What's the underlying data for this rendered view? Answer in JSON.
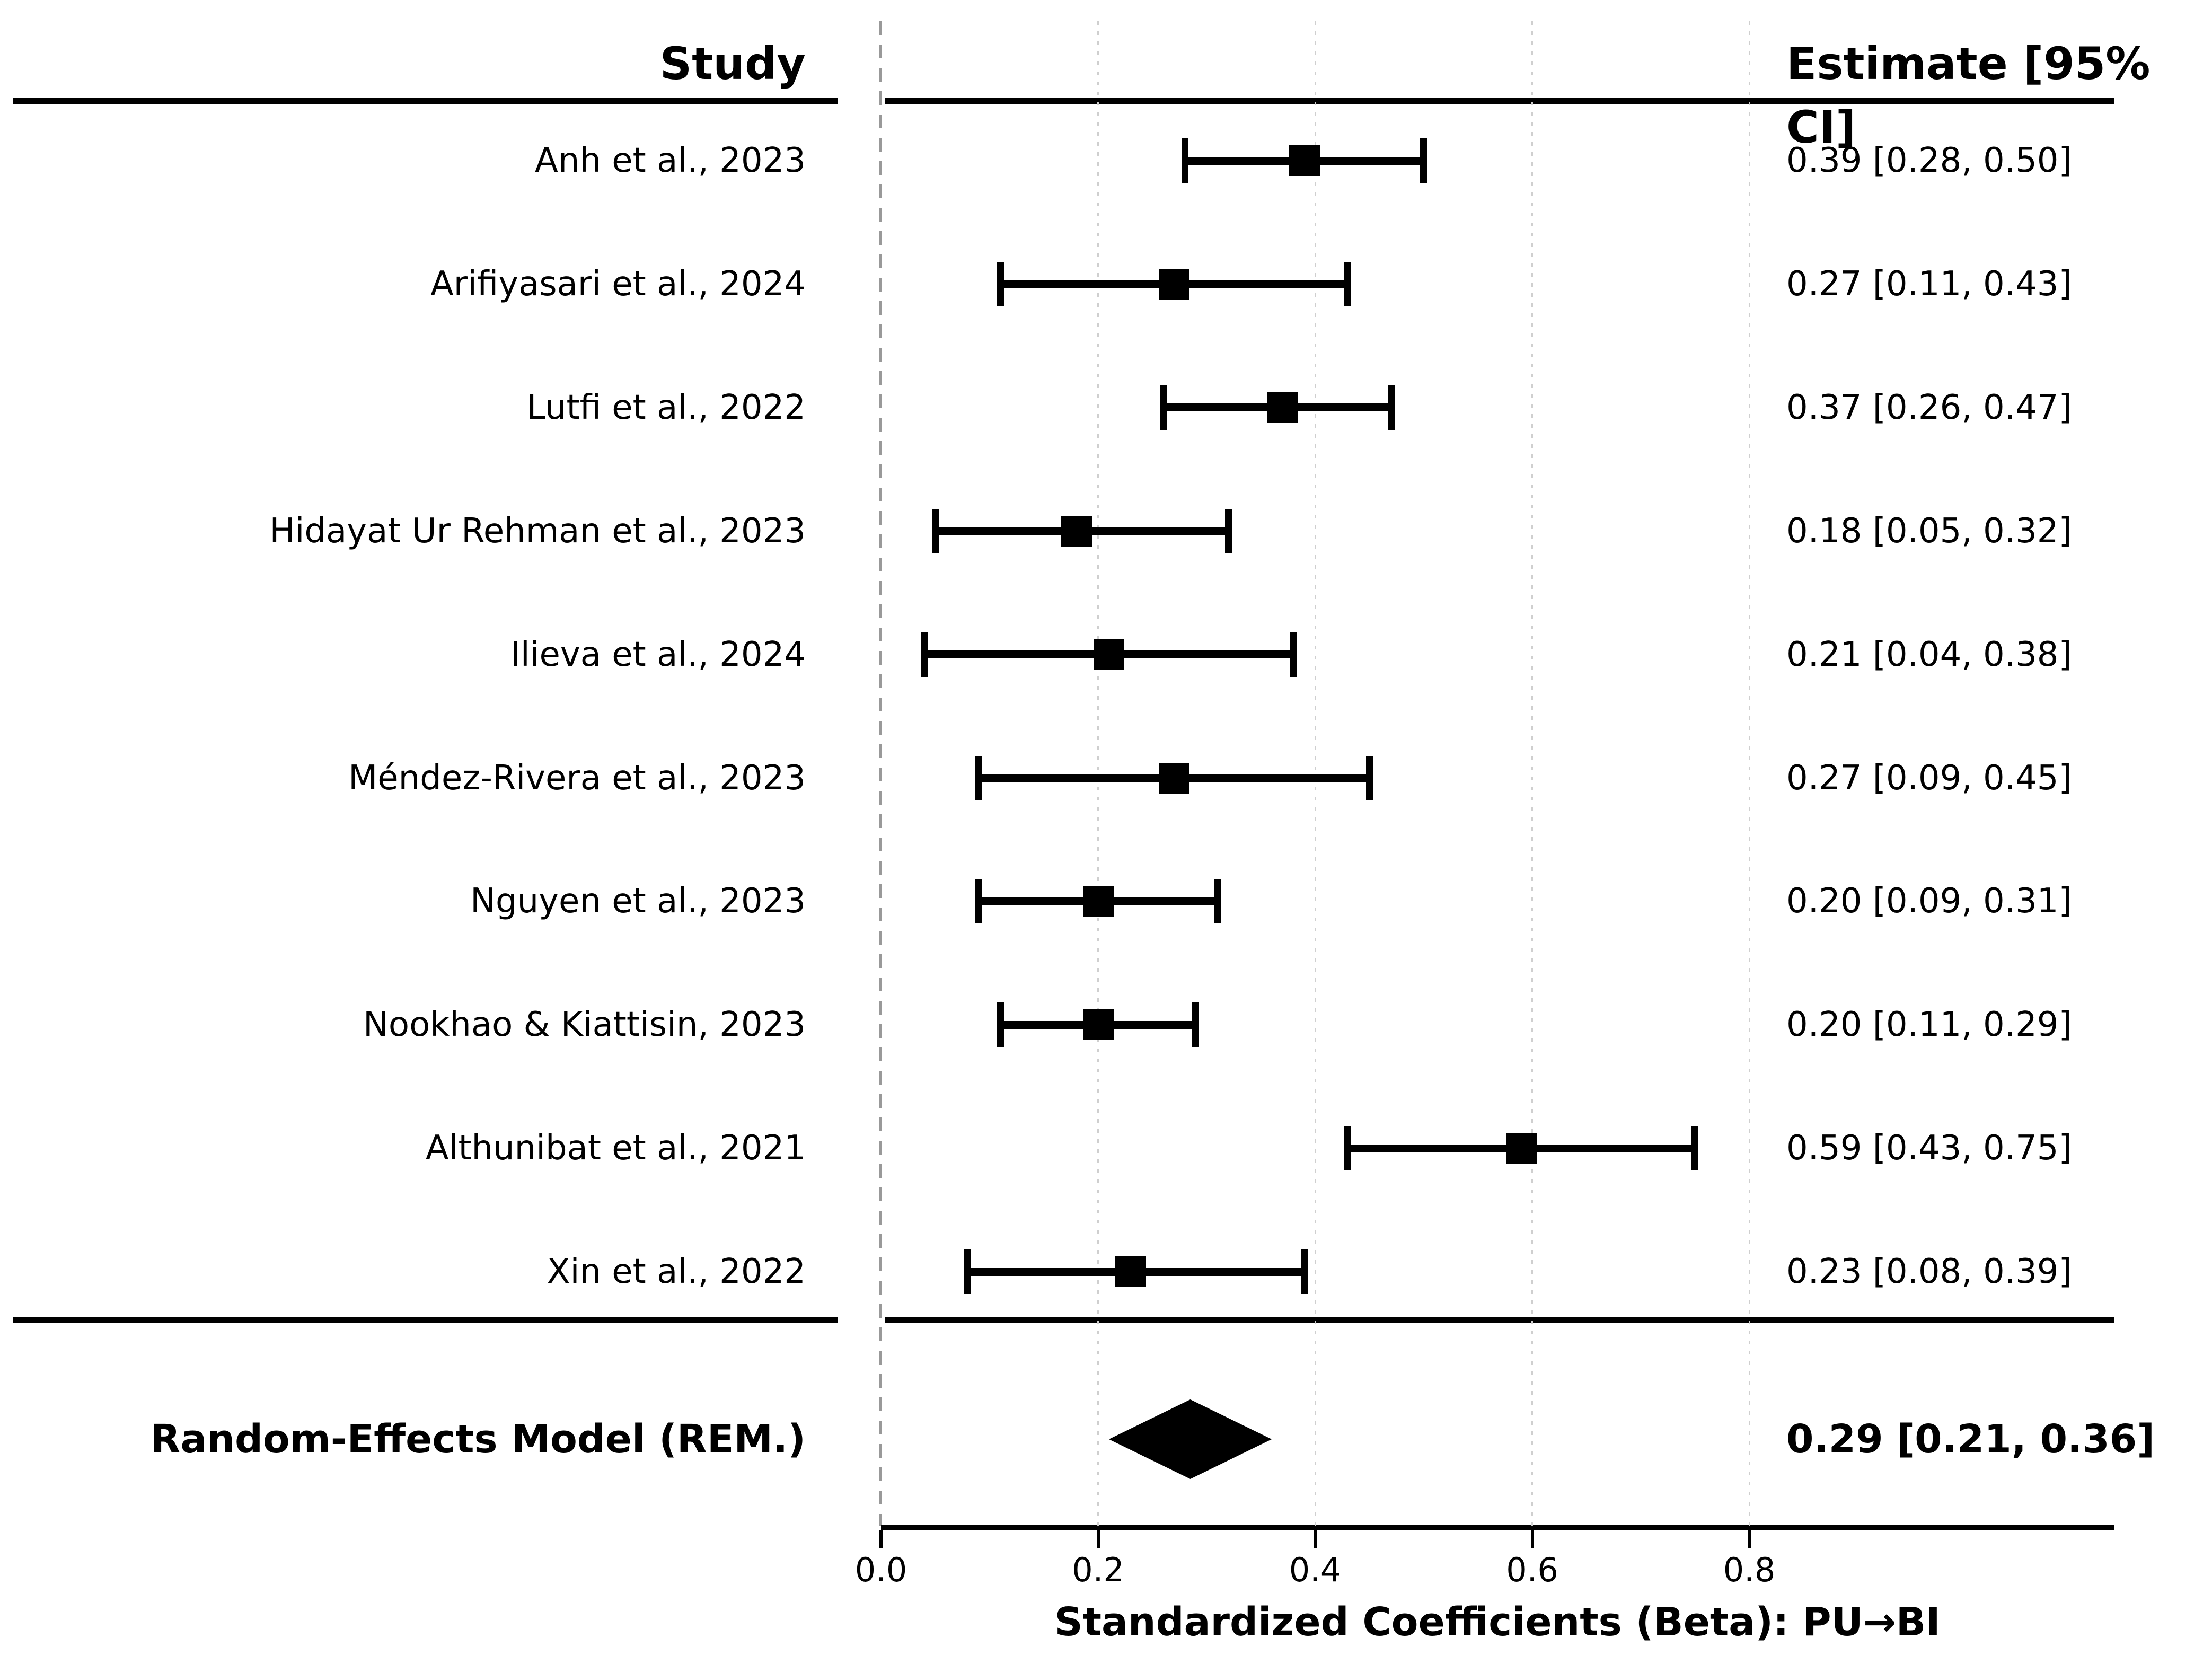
{
  "chart_data": {
    "type": "forest",
    "title": "",
    "xlabel": "Standardized Coefficients (Beta): PU→BI",
    "columns": {
      "study": "Study",
      "estimate": "Estimate [95% CI]"
    },
    "x_ticks": [
      0.0,
      0.2,
      0.4,
      0.6,
      0.8
    ],
    "x_tick_labels": [
      "0.0",
      "0.2",
      "0.4",
      "0.6",
      "0.8"
    ],
    "xlim": [
      -0.08,
      1.14
    ],
    "grid": "dotted vertical gridlines at ticks; gray dashed reference line at 0",
    "legend": "none",
    "studies": [
      {
        "label": "Anh et al., 2023",
        "estimate": 0.39,
        "ci_lower": 0.28,
        "ci_upper": 0.5,
        "estimate_text": "0.39 [0.28, 0.50]"
      },
      {
        "label": "Arifiyasari et al., 2024",
        "estimate": 0.27,
        "ci_lower": 0.11,
        "ci_upper": 0.43,
        "estimate_text": "0.27 [0.11, 0.43]"
      },
      {
        "label": "Lutfi et al., 2022",
        "estimate": 0.37,
        "ci_lower": 0.26,
        "ci_upper": 0.47,
        "estimate_text": "0.37 [0.26, 0.47]"
      },
      {
        "label": "Hidayat Ur Rehman et al., 2023",
        "estimate": 0.18,
        "ci_lower": 0.05,
        "ci_upper": 0.32,
        "estimate_text": "0.18 [0.05, 0.32]"
      },
      {
        "label": "Ilieva et al., 2024",
        "estimate": 0.21,
        "ci_lower": 0.04,
        "ci_upper": 0.38,
        "estimate_text": "0.21 [0.04, 0.38]"
      },
      {
        "label": "Méndez-Rivera et al., 2023",
        "estimate": 0.27,
        "ci_lower": 0.09,
        "ci_upper": 0.45,
        "estimate_text": "0.27 [0.09, 0.45]"
      },
      {
        "label": "Nguyen et al., 2023",
        "estimate": 0.2,
        "ci_lower": 0.09,
        "ci_upper": 0.31,
        "estimate_text": "0.20 [0.09, 0.31]"
      },
      {
        "label": "Nookhao & Kiattisin, 2023",
        "estimate": 0.2,
        "ci_lower": 0.11,
        "ci_upper": 0.29,
        "estimate_text": "0.20 [0.11, 0.29]"
      },
      {
        "label": "Althunibat et al., 2021",
        "estimate": 0.59,
        "ci_lower": 0.43,
        "ci_upper": 0.75,
        "estimate_text": "0.59 [0.43, 0.75]"
      },
      {
        "label": "Xin et al., 2022",
        "estimate": 0.23,
        "ci_lower": 0.08,
        "ci_upper": 0.39,
        "estimate_text": "0.23 [0.08, 0.39]"
      }
    ],
    "summary": {
      "label": "Random-Effects Model (REM.)",
      "estimate": 0.29,
      "ci_lower": 0.21,
      "ci_upper": 0.36,
      "estimate_text": "0.29 [0.21, 0.36]"
    },
    "colors": {
      "marker": "#000000",
      "line": "#000000",
      "zero_line": "#999999",
      "gridline": "#cfcfcf",
      "background": "#ffffff"
    }
  }
}
